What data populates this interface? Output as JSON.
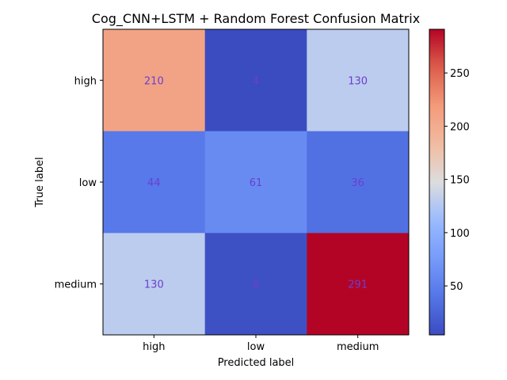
{
  "chart_data": {
    "type": "heatmap",
    "title": "Cog_CNN+LSTM + Random Forest Confusion Matrix",
    "xlabel": "Predicted label",
    "ylabel": "True label",
    "x_categories": [
      "high",
      "low",
      "medium"
    ],
    "y_categories": [
      "high",
      "low",
      "medium"
    ],
    "values": [
      [
        210,
        4,
        130
      ],
      [
        44,
        61,
        36
      ],
      [
        130,
        8,
        291
      ]
    ],
    "colormap": "coolwarm",
    "color_range": [
      4,
      291
    ],
    "colorbar_ticks": [
      50,
      100,
      150,
      200,
      250
    ],
    "cell_label_color": "#6a3fd0",
    "grid": false
  }
}
